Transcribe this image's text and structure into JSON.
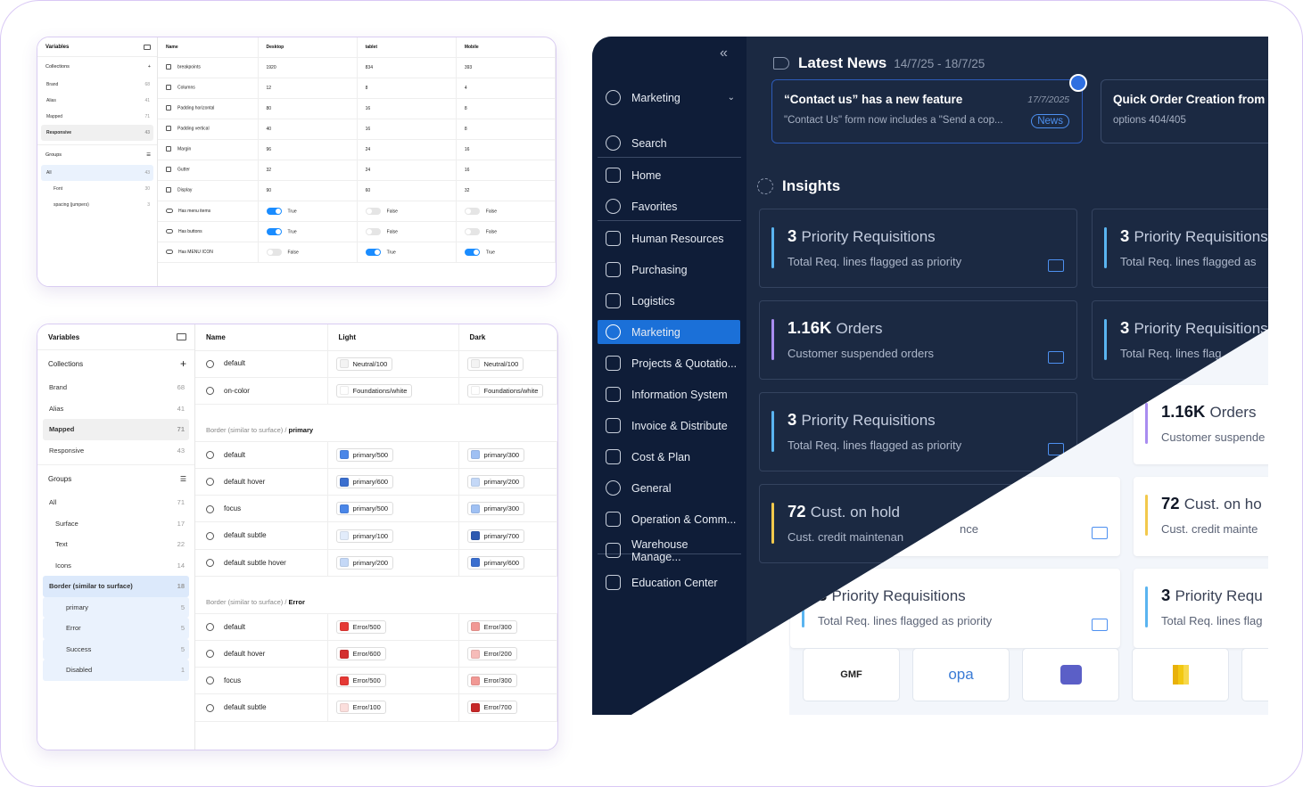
{
  "panel1": {
    "title": "Variables",
    "collections_label": "Collections",
    "collections": [
      {
        "name": "Brand",
        "count": "68"
      },
      {
        "name": "Alias",
        "count": "41"
      },
      {
        "name": "Mapped",
        "count": "71"
      },
      {
        "name": "Responsive",
        "count": "43"
      }
    ],
    "groups_label": "Groups",
    "groups": [
      {
        "name": "All",
        "count": "43"
      },
      {
        "name": "Font",
        "count": "30"
      },
      {
        "name": "spacing (jumpers)",
        "count": "3"
      }
    ],
    "headers": [
      "Name",
      "Desktop",
      "tablet",
      "Mobile"
    ],
    "rows": [
      [
        "breakpoints",
        "1920",
        "834",
        "393"
      ],
      [
        "Columns",
        "12",
        "8",
        "4"
      ],
      [
        "Padding horizontal",
        "80",
        "16",
        "8"
      ],
      [
        "Padding vertical",
        "40",
        "16",
        "8"
      ],
      [
        "Margin",
        "96",
        "24",
        "16"
      ],
      [
        "Gutter",
        "32",
        "24",
        "16"
      ],
      [
        "Display",
        "90",
        "60",
        "32"
      ]
    ],
    "bool_rows": [
      {
        "name": "Has menu items",
        "v": [
          "True",
          "False",
          "False"
        ]
      },
      {
        "name": "Has buttons",
        "v": [
          "True",
          "False",
          "False"
        ]
      },
      {
        "name": "Has MENU ICON",
        "v": [
          "False",
          "True",
          "True"
        ]
      }
    ]
  },
  "panel2": {
    "title": "Variables",
    "collections_label": "Collections",
    "collections": [
      {
        "name": "Brand",
        "count": "68"
      },
      {
        "name": "Alias",
        "count": "41"
      },
      {
        "name": "Mapped",
        "count": "71"
      },
      {
        "name": "Responsive",
        "count": "43"
      }
    ],
    "groups_label": "Groups",
    "groups": [
      {
        "name": "All",
        "count": "71"
      },
      {
        "name": "Surface",
        "count": "17"
      },
      {
        "name": "Text",
        "count": "22"
      },
      {
        "name": "Icons",
        "count": "14"
      },
      {
        "name": "Border (similar to surface)",
        "count": "18"
      },
      {
        "name": "primary",
        "count": "5"
      },
      {
        "name": "Error",
        "count": "5"
      },
      {
        "name": "Success",
        "count": "5"
      },
      {
        "name": "Disabled",
        "count": "1"
      }
    ],
    "headers": [
      "Name",
      "Light",
      "Dark"
    ],
    "top_rows": [
      {
        "name": "default",
        "light": "Neutral/100",
        "dark": "Neutral/100"
      },
      {
        "name": "on-color",
        "light": "Foundations/white",
        "dark": "Foundations/white"
      }
    ],
    "group1_prefix": "Border (similar to surface) / ",
    "group1_name": "primary",
    "group1_rows": [
      {
        "name": "default",
        "light": "primary/500",
        "dark": "primary/300"
      },
      {
        "name": "default hover",
        "light": "primary/600",
        "dark": "primary/200"
      },
      {
        "name": "focus",
        "light": "primary/500",
        "dark": "primary/300"
      },
      {
        "name": "default subtle",
        "light": "primary/100",
        "dark": "primary/700"
      },
      {
        "name": "default subtle hover",
        "light": "primary/200",
        "dark": "primary/600"
      }
    ],
    "group2_prefix": "Border (similar to surface) / ",
    "group2_name": "Error",
    "group2_rows": [
      {
        "name": "default",
        "light": "Error/500",
        "dark": "Error/300"
      },
      {
        "name": "default hover",
        "light": "Error/600",
        "dark": "Error/200"
      },
      {
        "name": "focus",
        "light": "Error/500",
        "dark": "Error/300"
      },
      {
        "name": "default subtle",
        "light": "Error/100",
        "dark": "Error/700"
      }
    ]
  },
  "dashboard": {
    "collapse": "«",
    "nav_top": "Marketing",
    "nav": [
      "Search",
      "Home",
      "Favorites",
      "Human Resources",
      "Purchasing",
      "Logistics",
      "Marketing",
      "Projects & Quotatio...",
      "Information System",
      "Invoice & Distribute",
      "Cost & Plan",
      "General",
      "Operation & Comm...",
      "Warehouse Manage...",
      "Education Center"
    ],
    "news_title": "Latest News",
    "news_dates": "14/7/25 - 18/7/25",
    "news1": {
      "title": "“Contact us” has a new feature",
      "body": "\"Contact Us\" form now includes a \"Send a cop...",
      "date": "17/7/2025",
      "tag": "News"
    },
    "news2": {
      "title": "Quick Order Creation from P",
      "body": "options 404/405"
    },
    "insights_title": "Insights",
    "cards": [
      {
        "num": "3",
        "label": "Priority Requisitions",
        "sub": "Total Req. lines flagged as priority"
      },
      {
        "num": "3",
        "label": "Priority Requisitions",
        "sub": "Total Req. lines flagged as"
      },
      {
        "num": "1.16K",
        "label": "Orders",
        "sub": "Customer suspended orders"
      },
      {
        "num": "3",
        "label": "Priority Requisitions",
        "sub": "Total Req. lines flag"
      },
      {
        "num": "3",
        "label": "Priority Requisitions",
        "sub": "Total Req. lines flagged as priority"
      },
      {
        "num": "72",
        "label": "Cust. on hold",
        "sub": "Cust. credit maintenan"
      }
    ],
    "light_cards": [
      {
        "num": "1.16K",
        "label": "Orders",
        "sub": "Customer suspende"
      },
      {
        "num": "",
        "label": "",
        "sub": "nce"
      },
      {
        "num": "72",
        "label": "Cust. on ho",
        "sub": "Cust. credit mainte"
      },
      {
        "num": "3",
        "label": "Priority Requisitions",
        "sub": "Total Req. lines flagged as priority"
      },
      {
        "num": "3",
        "label": "Priority Requ",
        "sub": "Total Req. lines flag"
      }
    ],
    "logos": [
      "GMF",
      "opa",
      "",
      "",
      ""
    ],
    "colors": {
      "accent": "#1b70d8",
      "bar_blue": "#5ab4f0",
      "bar_purple": "#a98cf0",
      "bar_yellow": "#f2c94c"
    }
  }
}
